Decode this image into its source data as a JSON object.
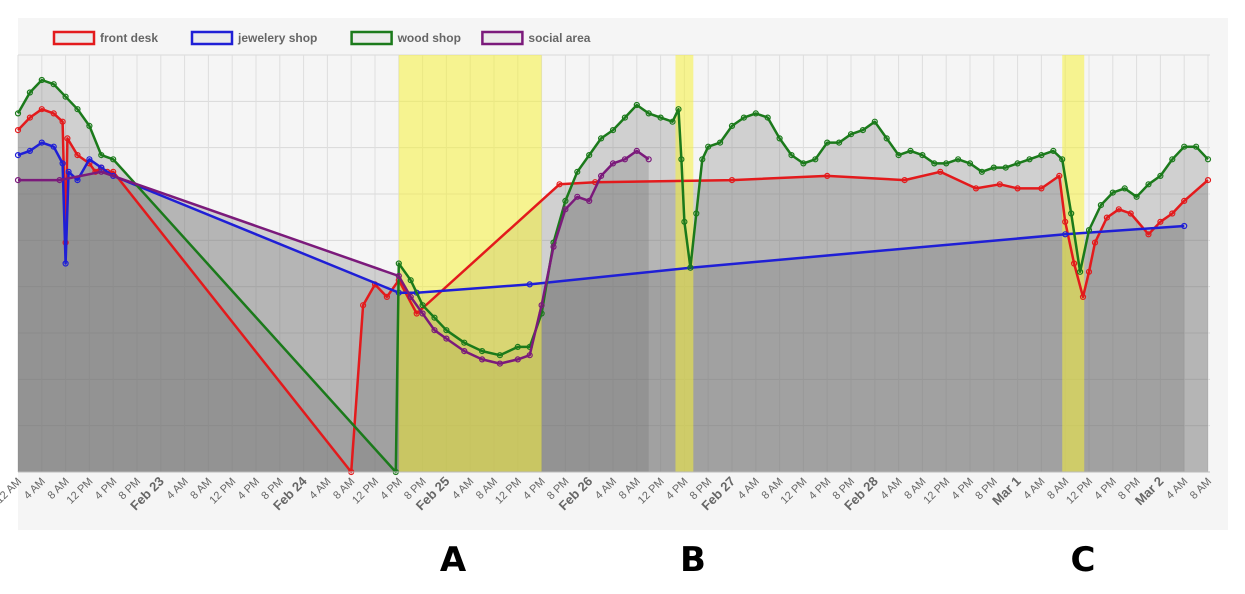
{
  "chart_data": {
    "type": "line",
    "legend": [
      {
        "name": "front desk",
        "color": "#e31a1c"
      },
      {
        "name": "jewelery shop",
        "color": "#1f1fd6"
      },
      {
        "name": "wood shop",
        "color": "#1b7a1b"
      },
      {
        "name": "social area",
        "color": "#7b1a7b"
      }
    ],
    "legend_position": "top-left",
    "grid": true,
    "x_tick_labels": [
      "12 AM",
      "4 AM",
      "8 AM",
      "12 PM",
      "4 PM",
      "8 PM",
      "Feb 23",
      "4 AM",
      "8 AM",
      "12 PM",
      "4 PM",
      "8 PM",
      "Feb 24",
      "4 AM",
      "8 AM",
      "12 PM",
      "4 PM",
      "8 PM",
      "Feb 25",
      "4 AM",
      "8 AM",
      "12 PM",
      "4 PM",
      "8 PM",
      "Feb 26",
      "4 AM",
      "8 AM",
      "12 PM",
      "4 PM",
      "8 PM",
      "Feb 27",
      "4 AM",
      "8 AM",
      "12 PM",
      "4 PM",
      "8 PM",
      "Feb 28",
      "4 AM",
      "8 AM",
      "12 PM",
      "4 PM",
      "8 PM",
      "Mar 1",
      "4 AM",
      "8 AM",
      "12 PM",
      "4 PM",
      "8 PM",
      "Mar 2",
      "4 AM",
      "8 AM"
    ],
    "highlight_regions": [
      {
        "label": "A",
        "start_hour": 64,
        "end_hour": 88
      },
      {
        "label": "B",
        "start_hour": 110.5,
        "end_hour": 113.5
      },
      {
        "label": "C",
        "start_hour": 175.5,
        "end_hour": 179.2
      }
    ],
    "ylim": [
      0,
      100
    ],
    "series": [
      {
        "name": "front desk",
        "color": "#e31a1c",
        "points": [
          [
            0,
            82
          ],
          [
            2,
            85
          ],
          [
            4,
            87
          ],
          [
            6,
            86
          ],
          [
            7.5,
            84
          ],
          [
            8,
            55
          ],
          [
            8.3,
            80
          ],
          [
            10,
            76
          ],
          [
            12,
            74
          ],
          [
            13,
            72
          ],
          [
            14,
            73
          ],
          [
            15,
            72
          ],
          [
            16,
            72
          ],
          [
            56,
            0
          ],
          [
            58,
            40
          ],
          [
            60,
            45
          ],
          [
            62,
            42
          ],
          [
            64,
            46
          ],
          [
            67,
            38
          ],
          [
            91,
            69
          ],
          [
            97,
            69.5
          ],
          [
            120,
            70
          ],
          [
            136,
            71
          ],
          [
            149,
            70
          ],
          [
            155,
            72
          ],
          [
            161,
            68
          ],
          [
            165,
            69
          ],
          [
            168,
            68
          ],
          [
            172,
            68
          ],
          [
            175,
            71
          ],
          [
            176,
            60
          ],
          [
            177.5,
            50
          ],
          [
            179,
            42
          ],
          [
            180,
            48
          ],
          [
            181,
            55
          ],
          [
            183,
            61
          ],
          [
            185,
            63
          ],
          [
            187,
            62
          ],
          [
            190,
            57
          ],
          [
            192,
            60
          ],
          [
            194,
            62
          ],
          [
            196,
            65
          ],
          [
            200,
            70
          ]
        ],
        "end_label": ""
      },
      {
        "name": "jewelery shop",
        "color": "#1f1fd6",
        "points": [
          [
            0,
            76
          ],
          [
            2,
            77
          ],
          [
            4,
            79
          ],
          [
            6,
            78
          ],
          [
            7.5,
            74
          ],
          [
            8,
            50
          ],
          [
            8.5,
            72
          ],
          [
            10,
            70
          ],
          [
            12,
            75
          ],
          [
            14,
            73
          ],
          [
            16,
            71
          ],
          [
            64,
            43
          ],
          [
            67,
            43
          ],
          [
            86,
            45
          ],
          [
            113,
            49
          ],
          [
            176,
            57
          ],
          [
            196,
            59
          ]
        ]
      },
      {
        "name": "wood shop",
        "color": "#1b7a1b",
        "points": [
          [
            0,
            86
          ],
          [
            2,
            91
          ],
          [
            4,
            94
          ],
          [
            6,
            93
          ],
          [
            8,
            90
          ],
          [
            10,
            87
          ],
          [
            12,
            83
          ],
          [
            14,
            76
          ],
          [
            16,
            75
          ],
          [
            63.5,
            0
          ],
          [
            64,
            50
          ],
          [
            66,
            46
          ],
          [
            68,
            40
          ],
          [
            70,
            37
          ],
          [
            72,
            34
          ],
          [
            75,
            31
          ],
          [
            78,
            29
          ],
          [
            81,
            28
          ],
          [
            84,
            30
          ],
          [
            86,
            30
          ],
          [
            88,
            38
          ],
          [
            90,
            55
          ],
          [
            92,
            65
          ],
          [
            94,
            72
          ],
          [
            96,
            76
          ],
          [
            98,
            80
          ],
          [
            100,
            82
          ],
          [
            102,
            85
          ],
          [
            104,
            88
          ],
          [
            106,
            86
          ],
          [
            108,
            85
          ],
          [
            110,
            84
          ],
          [
            111,
            87
          ],
          [
            111.5,
            75
          ],
          [
            112,
            60
          ],
          [
            113,
            49
          ],
          [
            114,
            62
          ],
          [
            115,
            75
          ],
          [
            116,
            78
          ],
          [
            118,
            79
          ],
          [
            120,
            83
          ],
          [
            122,
            85
          ],
          [
            124,
            86
          ],
          [
            126,
            85
          ],
          [
            128,
            80
          ],
          [
            130,
            76
          ],
          [
            132,
            74
          ],
          [
            134,
            75
          ],
          [
            136,
            79
          ],
          [
            138,
            79
          ],
          [
            140,
            81
          ],
          [
            142,
            82
          ],
          [
            144,
            84
          ],
          [
            146,
            80
          ],
          [
            148,
            76
          ],
          [
            150,
            77
          ],
          [
            152,
            76
          ],
          [
            154,
            74
          ],
          [
            156,
            74
          ],
          [
            158,
            75
          ],
          [
            160,
            74
          ],
          [
            162,
            72
          ],
          [
            164,
            73
          ],
          [
            166,
            73
          ],
          [
            168,
            74
          ],
          [
            170,
            75
          ],
          [
            172,
            76
          ],
          [
            174,
            77
          ],
          [
            175.5,
            75
          ],
          [
            177,
            62
          ],
          [
            178.5,
            48
          ],
          [
            180,
            58
          ],
          [
            182,
            64
          ],
          [
            184,
            67
          ],
          [
            186,
            68
          ],
          [
            188,
            66
          ],
          [
            190,
            69
          ],
          [
            192,
            71
          ],
          [
            194,
            75
          ],
          [
            196,
            78
          ],
          [
            198,
            78
          ],
          [
            200,
            75
          ]
        ]
      },
      {
        "name": "social area",
        "color": "#7b1a7b",
        "points": [
          [
            0,
            70
          ],
          [
            7,
            70
          ],
          [
            14,
            72
          ],
          [
            64,
            47
          ],
          [
            66,
            42
          ],
          [
            68,
            38
          ],
          [
            70,
            34
          ],
          [
            72,
            32
          ],
          [
            75,
            29
          ],
          [
            78,
            27
          ],
          [
            81,
            26
          ],
          [
            84,
            27
          ],
          [
            86,
            28
          ],
          [
            88,
            40
          ],
          [
            90,
            54
          ],
          [
            92,
            63
          ],
          [
            94,
            66
          ],
          [
            96,
            65
          ],
          [
            98,
            71
          ],
          [
            100,
            74
          ],
          [
            102,
            75
          ],
          [
            104,
            77
          ],
          [
            106,
            75
          ]
        ]
      }
    ]
  },
  "panel_labels": {
    "a": "A",
    "b": "B",
    "c": "C"
  }
}
